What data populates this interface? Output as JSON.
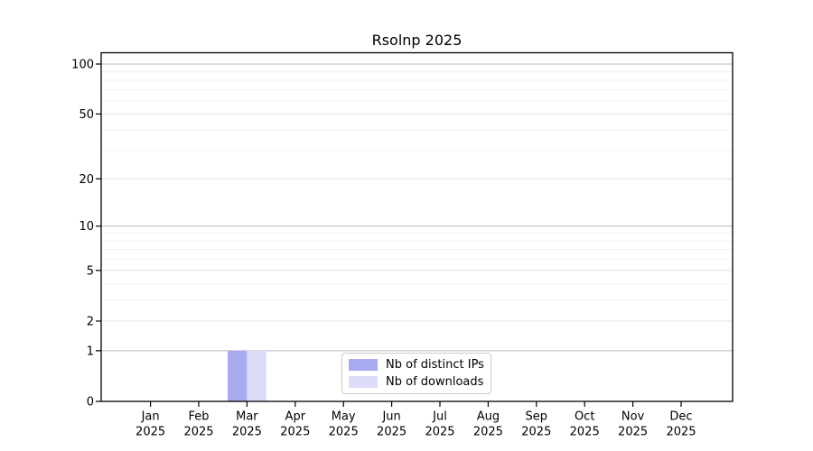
{
  "chart_data": {
    "type": "bar",
    "title": "Rsolnp 2025",
    "x_categories": [
      "Jan",
      "Feb",
      "Mar",
      "Apr",
      "May",
      "Jun",
      "Jul",
      "Aug",
      "Sep",
      "Oct",
      "Nov",
      "Dec"
    ],
    "x_year_label": "2025",
    "series": [
      {
        "name": "Nb of distinct IPs",
        "color": "#a9a9ef",
        "values": [
          0,
          0,
          1,
          0,
          0,
          0,
          0,
          0,
          0,
          0,
          0,
          0
        ]
      },
      {
        "name": "Nb of downloads",
        "color": "#dcdcf8",
        "values": [
          0,
          0,
          1,
          0,
          0,
          0,
          0,
          0,
          0,
          0,
          0,
          0
        ]
      }
    ],
    "y_axis": {
      "scale": "log1p",
      "major_ticks": [
        0,
        1,
        2,
        5,
        10,
        20,
        50,
        100
      ],
      "minor_ticks": [
        3,
        4,
        6,
        7,
        8,
        9,
        30,
        40,
        60,
        70,
        80,
        90
      ],
      "decade_ticks": [
        1,
        10,
        100
      ]
    },
    "legend_position": "bottom-center",
    "grid": true
  },
  "style": {
    "background": "#ffffff",
    "axis_color": "#000000",
    "grid_decade_color": "#bcbcbc",
    "grid_major_color": "#e4e4e4",
    "grid_minor_color": "#f2f2f2",
    "legend_border_color": "#c9c9c9",
    "tick_label_color": "#000000"
  }
}
